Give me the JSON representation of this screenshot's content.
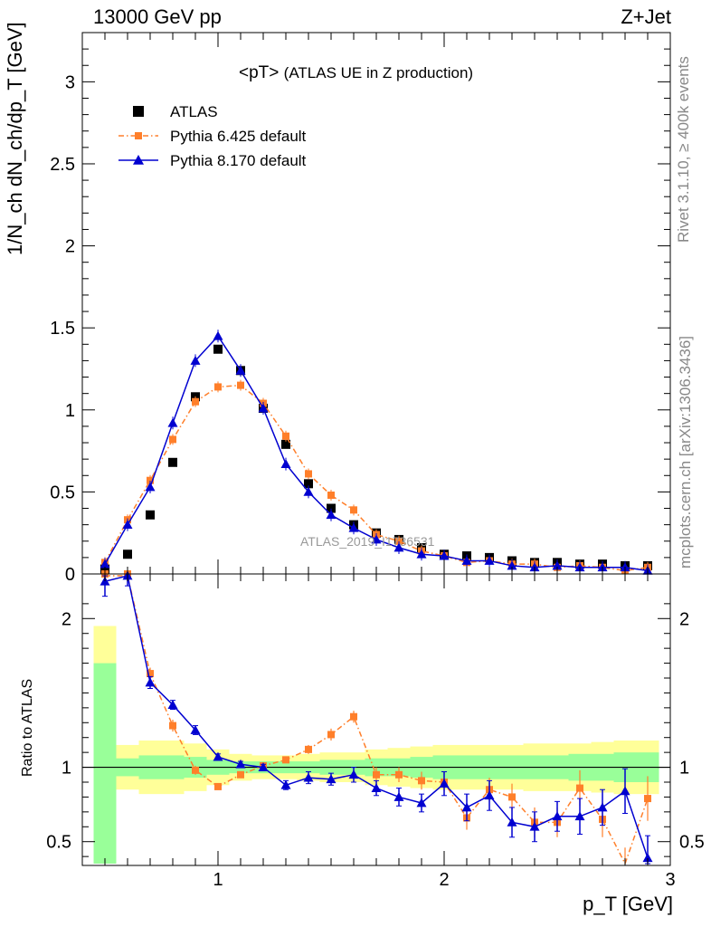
{
  "header": {
    "left": "13000 GeV pp",
    "right": "Z+Jet"
  },
  "side": {
    "rivet": "Rivet 3.1.10, ≥ 400k events",
    "mcplots": "mcplots.cern.ch [arXiv:1306.3436]"
  },
  "colors": {
    "atlas": "#000000",
    "pythia6": "#ff7f2a",
    "pythia8": "#0000d0",
    "band_inner": "#99ff99",
    "band_outer": "#ffff99"
  },
  "chart_data": [
    {
      "type": "scatter",
      "title": "<pT>",
      "subtitle": "(ATLAS UE in Z production)",
      "ylabel": "1/N_ch dN_ch/dp_T [GeV]",
      "xlabel": "p_T [GeV]",
      "xlim": [
        0.4,
        3.0
      ],
      "ylim": [
        0,
        3.3
      ],
      "yticks": [
        "0",
        "0.5",
        "1",
        "1.5",
        "2",
        "2.5",
        "3"
      ],
      "watermark": "ATLAS_2019_I1736531",
      "legend": [
        "ATLAS",
        "Pythia 6.425 default",
        "Pythia 8.170 default"
      ],
      "x": [
        0.5,
        0.6,
        0.7,
        0.8,
        0.9,
        1.0,
        1.1,
        1.2,
        1.3,
        1.4,
        1.5,
        1.6,
        1.7,
        1.8,
        1.9,
        2.0,
        2.1,
        2.2,
        2.3,
        2.4,
        2.5,
        2.6,
        2.7,
        2.8,
        2.9
      ],
      "series": [
        {
          "name": "ATLAS",
          "values": [
            0.03,
            0.12,
            0.36,
            0.68,
            1.08,
            1.37,
            1.24,
            1.01,
            0.79,
            0.55,
            0.4,
            0.3,
            0.25,
            0.21,
            0.16,
            0.12,
            0.11,
            0.1,
            0.08,
            0.07,
            0.07,
            0.06,
            0.06,
            0.05,
            0.05
          ]
        },
        {
          "name": "Pythia 6.425 default",
          "values": [
            0.07,
            0.33,
            0.57,
            0.82,
            1.05,
            1.14,
            1.15,
            1.04,
            0.84,
            0.61,
            0.48,
            0.39,
            0.24,
            0.2,
            0.14,
            0.11,
            0.07,
            0.08,
            0.06,
            0.06,
            0.04,
            0.05,
            0.04,
            0.02,
            0.04
          ]
        },
        {
          "name": "Pythia 8.170 default",
          "values": [
            0.06,
            0.3,
            0.53,
            0.92,
            1.3,
            1.45,
            1.24,
            1.01,
            0.67,
            0.5,
            0.36,
            0.28,
            0.21,
            0.16,
            0.12,
            0.11,
            0.08,
            0.08,
            0.05,
            0.04,
            0.05,
            0.04,
            0.04,
            0.04,
            0.02
          ]
        }
      ]
    },
    {
      "type": "scatter",
      "ylabel": "Ratio to ATLAS",
      "xlabel": "p_T [GeV]",
      "xlim": [
        0.4,
        3.0
      ],
      "ylim": [
        0.34,
        2.3
      ],
      "yticks": [
        "0.5",
        "1",
        "2"
      ],
      "xticks": [
        "1",
        "2",
        "3"
      ],
      "reference": 1,
      "x": [
        0.5,
        0.6,
        0.7,
        0.8,
        0.9,
        1.0,
        1.1,
        1.2,
        1.3,
        1.4,
        1.5,
        1.6,
        1.7,
        1.8,
        1.9,
        2.0,
        2.1,
        2.2,
        2.3,
        2.4,
        2.5,
        2.6,
        2.7,
        2.8,
        2.9
      ],
      "series": [
        {
          "name": "Pythia 6.425 default",
          "values": [
            2.3,
            2.3,
            1.63,
            1.28,
            0.98,
            0.87,
            0.95,
            1.01,
            1.05,
            1.12,
            1.22,
            1.34,
            0.95,
            0.95,
            0.91,
            0.9,
            0.66,
            0.85,
            0.8,
            0.63,
            0.63,
            0.86,
            0.65,
            0.31,
            0.79
          ],
          "errors": [
            0.05,
            0.05,
            0.04,
            0.04,
            0.03,
            0.02,
            0.02,
            0.02,
            0.02,
            0.03,
            0.04,
            0.04,
            0.05,
            0.05,
            0.06,
            0.06,
            0.08,
            0.08,
            0.09,
            0.1,
            0.1,
            0.12,
            0.12,
            0.15,
            0.15
          ]
        },
        {
          "name": "Pythia 8.170 default",
          "values": [
            2.25,
            2.3,
            1.57,
            1.42,
            1.25,
            1.07,
            1.02,
            1.0,
            0.88,
            0.93,
            0.92,
            0.95,
            0.86,
            0.8,
            0.76,
            0.89,
            0.73,
            0.81,
            0.63,
            0.6,
            0.67,
            0.67,
            0.73,
            0.84,
            0.39
          ],
          "errors": [
            0.1,
            0.08,
            0.04,
            0.03,
            0.03,
            0.02,
            0.02,
            0.02,
            0.03,
            0.04,
            0.04,
            0.05,
            0.05,
            0.06,
            0.06,
            0.08,
            0.09,
            0.1,
            0.1,
            0.1,
            0.1,
            0.12,
            0.12,
            0.15,
            0.15
          ]
        }
      ],
      "band_edges": [
        0.45,
        0.55,
        0.65,
        0.75,
        0.85,
        0.95,
        1.05,
        1.15,
        1.25,
        1.35,
        1.45,
        1.55,
        1.65,
        1.75,
        1.85,
        1.95,
        2.05,
        2.15,
        2.25,
        2.35,
        2.45,
        2.55,
        2.65,
        2.75,
        2.85,
        2.95
      ],
      "band_inner": [
        0.7,
        0.06,
        0.08,
        0.08,
        0.07,
        0.05,
        0.04,
        0.04,
        0.04,
        0.04,
        0.05,
        0.05,
        0.06,
        0.06,
        0.07,
        0.08,
        0.08,
        0.08,
        0.08,
        0.08,
        0.08,
        0.09,
        0.09,
        0.1,
        0.1
      ],
      "band_outer": [
        0.95,
        0.15,
        0.18,
        0.18,
        0.16,
        0.12,
        0.09,
        0.08,
        0.08,
        0.09,
        0.1,
        0.1,
        0.12,
        0.13,
        0.14,
        0.15,
        0.15,
        0.15,
        0.15,
        0.16,
        0.16,
        0.16,
        0.17,
        0.18,
        0.18
      ]
    }
  ]
}
